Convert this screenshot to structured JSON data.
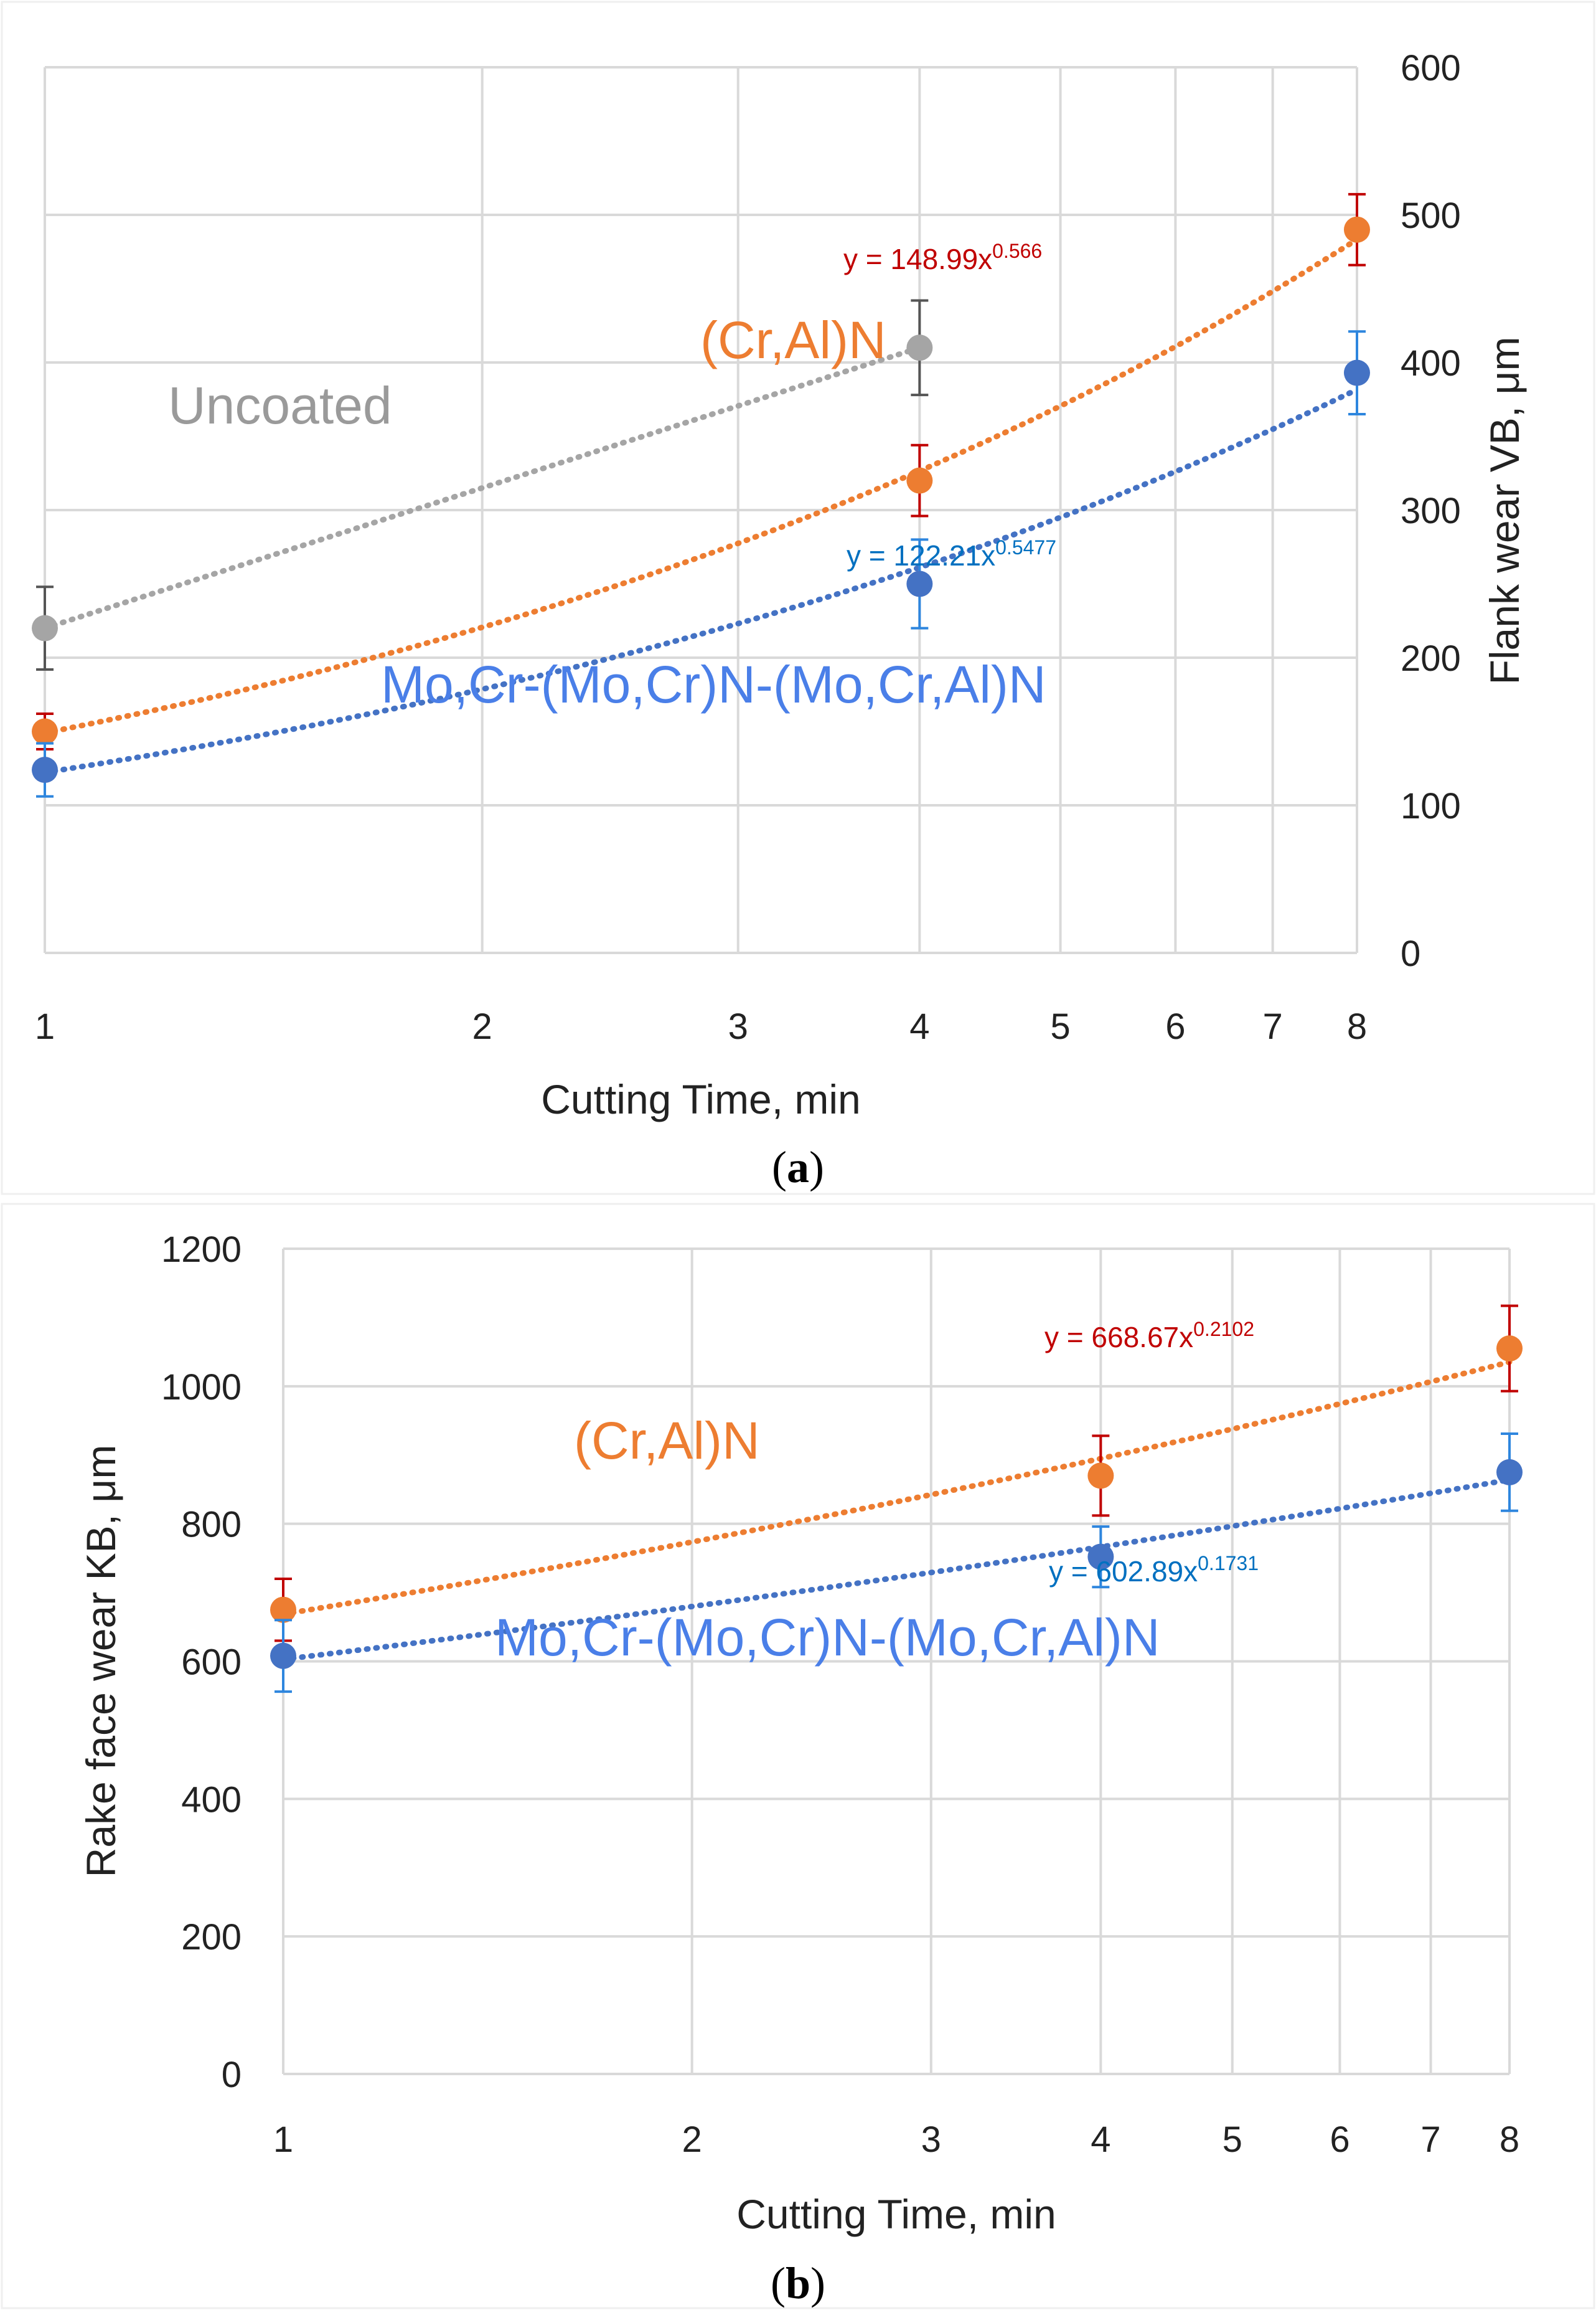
{
  "colors": {
    "grid": "#d9d9d9",
    "axis_text": "#222222",
    "orange": "#ed7d31",
    "blue": "#4472c4",
    "gray": "#a5a5a5",
    "label_orange": "#ed7d31",
    "label_blue": "#4a7fe8",
    "label_gray": "#9a9a9a",
    "eq_red": "#c00000",
    "eq_blue": "#0070c0",
    "err_red": "#c00000",
    "err_blue": "#2e86de",
    "err_gray": "#555555"
  },
  "chart_data": [
    {
      "id": "a",
      "type": "scatter",
      "caption_open": "(",
      "caption_letter": "a",
      "caption_close": ")",
      "xlabel": "Cutting Time, min",
      "ylabel": "Flank wear VB, μm",
      "y_axis_side": "right",
      "x_scale": "log2",
      "xlim": [
        1,
        8
      ],
      "ylim": [
        0,
        600
      ],
      "x_ticks": [
        1,
        2,
        3,
        4,
        5,
        6,
        7,
        8
      ],
      "x_tick_labels": [
        "1",
        "2",
        "3",
        "4",
        "5",
        "6",
        "7",
        "8"
      ],
      "y_ticks": [
        0,
        100,
        200,
        300,
        400,
        500,
        600
      ],
      "y_tick_labels": [
        "0",
        "100",
        "200",
        "300",
        "400",
        "500",
        "600"
      ],
      "grid": true,
      "series": [
        {
          "name": "Uncoated",
          "label": "Uncoated",
          "color_key": "gray",
          "label_color_key": "label_gray",
          "err_color_key": "err_gray",
          "x": [
            1,
            4
          ],
          "y": [
            220,
            410
          ],
          "yerr": [
            28,
            32
          ],
          "trend": {
            "type": "linear",
            "x_from": 1,
            "x_to": 4
          }
        },
        {
          "name": "(Cr,Al)N",
          "label": "(Cr,Al)N",
          "color_key": "orange",
          "label_color_key": "label_orange",
          "err_color_key": "err_red",
          "x": [
            1,
            4,
            8
          ],
          "y": [
            150,
            320,
            490
          ],
          "yerr": [
            12,
            24,
            24
          ],
          "trend": {
            "type": "power",
            "a": 148.99,
            "b": 0.566,
            "x_from": 1,
            "x_to": 8
          },
          "equation": {
            "prefix": "y = 148.99x",
            "exp": "0.566",
            "color_key": "eq_red"
          }
        },
        {
          "name": "Mo,Cr-(Mo,Cr)N-(Mo,Cr,Al)N",
          "label": "Mo,Cr-(Mo,Cr)N-(Mo,Cr,Al)N",
          "color_key": "blue",
          "label_color_key": "label_blue",
          "err_color_key": "err_blue",
          "x": [
            1,
            4,
            8
          ],
          "y": [
            124,
            250,
            393
          ],
          "yerr": [
            18,
            30,
            28
          ],
          "trend": {
            "type": "power",
            "a": 122.21,
            "b": 0.5477,
            "x_from": 1,
            "x_to": 8
          },
          "equation": {
            "prefix": "y = 122.21x",
            "exp": "0.5477",
            "color_key": "eq_blue"
          }
        }
      ]
    },
    {
      "id": "b",
      "type": "scatter",
      "caption_open": "(",
      "caption_letter": "b",
      "caption_close": ")",
      "xlabel": "Cutting Time, min",
      "ylabel": "Rake face wear  KB, μm",
      "y_axis_side": "left",
      "x_scale": "log2",
      "xlim": [
        1,
        8
      ],
      "ylim": [
        0,
        1200
      ],
      "x_ticks": [
        1,
        2,
        3,
        4,
        5,
        6,
        7,
        8
      ],
      "x_tick_labels": [
        "1",
        "2",
        "3",
        "4",
        "5",
        "6",
        "7",
        "8"
      ],
      "y_ticks": [
        0,
        200,
        400,
        600,
        800,
        1000,
        1200
      ],
      "y_tick_labels": [
        "0",
        "200",
        "400",
        "600",
        "800",
        "1000",
        "1200"
      ],
      "grid": true,
      "series": [
        {
          "name": "(Cr,Al)N",
          "label": "(Cr,Al)N",
          "color_key": "orange",
          "label_color_key": "label_orange",
          "err_color_key": "err_red",
          "x": [
            1,
            4,
            8
          ],
          "y": [
            675,
            870,
            1055
          ],
          "yerr": [
            45,
            58,
            62
          ],
          "trend": {
            "type": "power",
            "a": 668.67,
            "b": 0.2102,
            "x_from": 1,
            "x_to": 8
          },
          "equation": {
            "prefix": "y = 668.67x",
            "exp": "0.2102",
            "color_key": "eq_red"
          }
        },
        {
          "name": "Mo,Cr-(Mo,Cr)N-(Mo,Cr,Al)N",
          "label": "Mo,Cr-(Mo,Cr)N-(Mo,Cr,Al)N",
          "color_key": "blue",
          "label_color_key": "label_blue",
          "err_color_key": "err_blue",
          "x": [
            1,
            4,
            8
          ],
          "y": [
            608,
            752,
            875
          ],
          "yerr": [
            52,
            44,
            56
          ],
          "trend": {
            "type": "power",
            "a": 602.89,
            "b": 0.1731,
            "x_from": 1,
            "x_to": 8
          },
          "equation": {
            "prefix": "y = 602.89x",
            "exp": "0.1731",
            "color_key": "eq_blue"
          }
        }
      ]
    }
  ]
}
